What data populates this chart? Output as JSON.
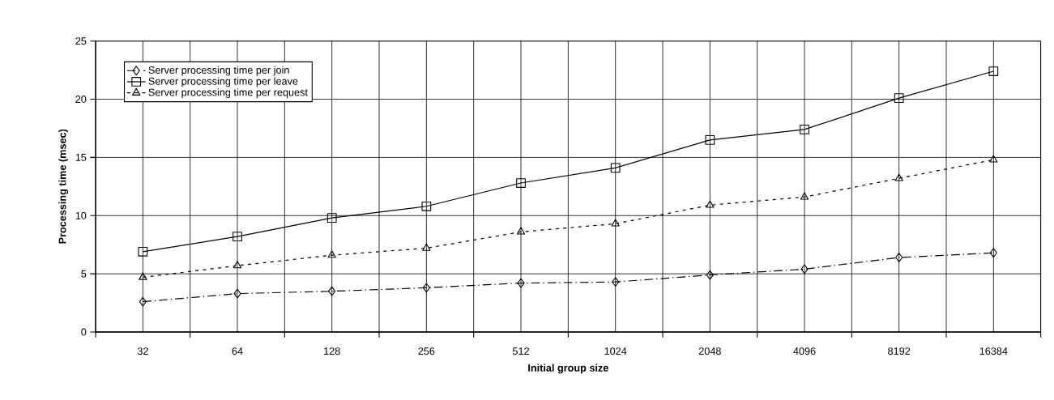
{
  "chart_data": {
    "type": "line",
    "xlabel": "Initial group size",
    "ylabel": "Processing time (msec)",
    "categories": [
      "32",
      "64",
      "128",
      "256",
      "512",
      "1024",
      "2048",
      "4096",
      "8192",
      "16384"
    ],
    "series": [
      {
        "name": "Server processing time per join",
        "color": "#000000",
        "marker": "diamond",
        "line_style": "dashed",
        "values": [
          2.6,
          3.3,
          3.5,
          3.8,
          4.2,
          4.3,
          4.9,
          5.4,
          6.4,
          6.8
        ]
      },
      {
        "name": "Server processing time per leave",
        "color": "#000000",
        "marker": "square",
        "line_style": "solid",
        "values": [
          6.9,
          8.2,
          9.8,
          10.8,
          12.8,
          14.1,
          16.5,
          17.4,
          20.1,
          22.4
        ]
      },
      {
        "name": "Server processing time per request",
        "color": "#000000",
        "marker": "triangle",
        "line_style": "dotted",
        "values": [
          4.7,
          5.7,
          6.6,
          7.2,
          8.6,
          9.3,
          10.9,
          11.6,
          13.2,
          14.8
        ]
      }
    ],
    "ylim": [
      0,
      25
    ],
    "yticks": [
      0,
      5,
      10,
      15,
      20,
      25
    ],
    "grid": true,
    "legend": "top left"
  }
}
